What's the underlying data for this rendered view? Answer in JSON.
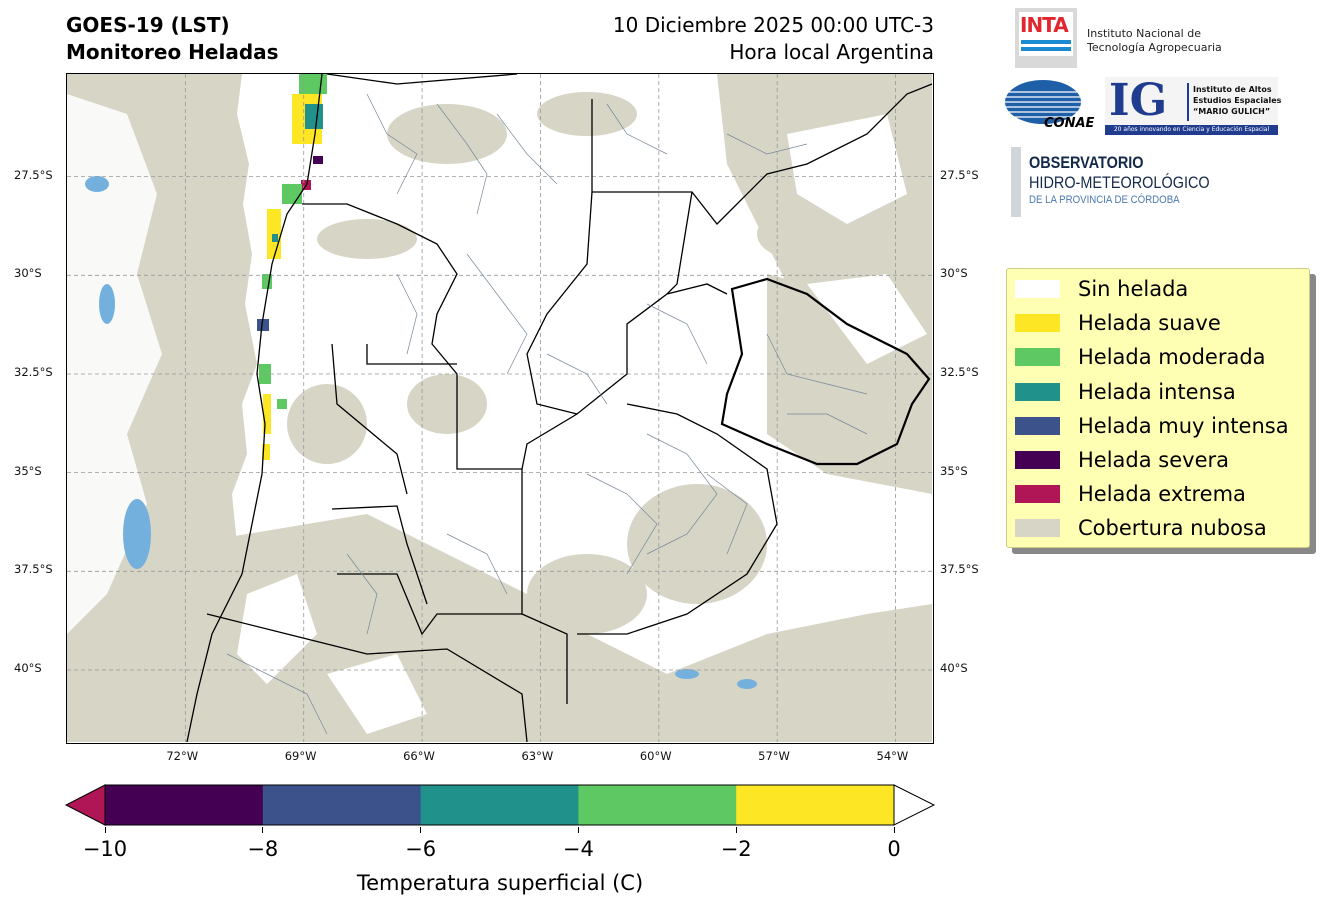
{
  "header": {
    "title_line1": "GOES-19 (LST)",
    "title_line2": "Monitoreo Heladas",
    "date_line": "10 Diciembre 2025 00:00 UTC-3",
    "local_time_line": "Hora local Argentina"
  },
  "map": {
    "lat_ticks": [
      "27.5°S",
      "30°S",
      "32.5°S",
      "35°S",
      "37.5°S",
      "40°S"
    ],
    "lon_ticks": [
      "72°W",
      "69°W",
      "66°W",
      "63°W",
      "60°W",
      "57°W",
      "54°W"
    ],
    "lat_range": [
      -41.9,
      -24.9
    ],
    "lon_range": [
      -75.0,
      -53.0
    ],
    "land_color": "#ffffff",
    "cloud_color": "#d6d5c6",
    "water_color": "#74b0dd",
    "border_color": "#000000",
    "department_color": "#778899",
    "grid": true
  },
  "legend": {
    "items": [
      {
        "label": "Sin helada",
        "color": "#ffffff"
      },
      {
        "label": "Helada suave",
        "color": "#fde725"
      },
      {
        "label": "Helada moderada",
        "color": "#5ec962"
      },
      {
        "label": "Helada intensa",
        "color": "#21918c"
      },
      {
        "label": "Helada muy intensa",
        "color": "#3b528b"
      },
      {
        "label": "Helada severa",
        "color": "#440154"
      },
      {
        "label": "Helada extrema",
        "color": "#b01656"
      },
      {
        "label": "Cobertura nubosa",
        "color": "#d6d5c6"
      }
    ]
  },
  "colorbar": {
    "label": "Temperatura superficial (C)",
    "ticks": [
      "−10",
      "−8",
      "−6",
      "−4",
      "−2",
      "0"
    ],
    "under_color": "#b01656",
    "over_color": "#ffffff",
    "segments": [
      "#440154",
      "#3b528b",
      "#21918c",
      "#5ec962",
      "#fde725"
    ]
  },
  "logos": {
    "inta": {
      "text": "INTA",
      "line1": "Instituto Nacional de",
      "line2": "Tecnología Agropecuaria",
      "color": "#e3262e"
    },
    "conae": {
      "text": "CONAE"
    },
    "ig": {
      "text": "IG",
      "line1": "Instituto de Altos",
      "line2": "Estudios Espaciales",
      "line3": "“MARIO GULICH”",
      "bar": "20 años innovando en Ciencia y Educación Espacial",
      "color": "#1f3c8f"
    },
    "observatorio": {
      "line1": "OBSERVATORIO",
      "line2": "HIDRO-METEOROLÓGICO",
      "line3": "DE LA PROVINCIA DE CÓRDOBA"
    }
  }
}
